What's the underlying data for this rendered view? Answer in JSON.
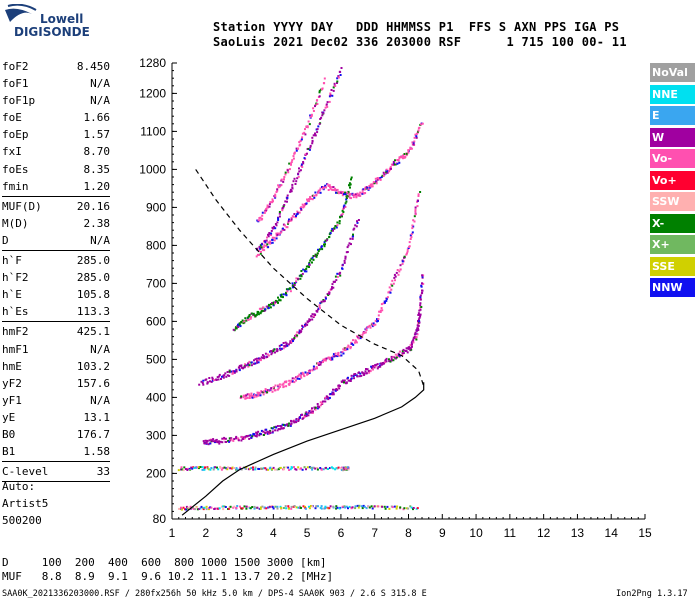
{
  "logo": {
    "line1": "Lowell",
    "line2": "DIGISONDE"
  },
  "header": {
    "line1": "Station YYYY DAY   DDD HHMMSS P1  FFS S AXN PPS IGA PS",
    "line2": "SaoLuis 2021 Dec02 336 203000 RSF      1 715 100 00- 11"
  },
  "params": [
    {
      "label": "foF2",
      "value": "8.450"
    },
    {
      "label": "foF1",
      "value": "N/A"
    },
    {
      "label": "foF1p",
      "value": "N/A"
    },
    {
      "label": "foE",
      "value": "1.66"
    },
    {
      "label": "foEp",
      "value": "1.57"
    },
    {
      "label": "fxI",
      "value": "8.70"
    },
    {
      "label": "foEs",
      "value": "8.35"
    },
    {
      "label": "fmin",
      "value": "1.20"
    },
    {
      "sep": true
    },
    {
      "label": "MUF(D)",
      "value": "20.16"
    },
    {
      "label": "M(D)",
      "value": "2.38"
    },
    {
      "label": "D",
      "value": "N/A"
    },
    {
      "sep": true
    },
    {
      "label": "h`F",
      "value": "285.0"
    },
    {
      "label": "h`F2",
      "value": "285.0"
    },
    {
      "label": "h`E",
      "value": "105.8"
    },
    {
      "label": "h`Es",
      "value": "113.3"
    },
    {
      "sep": true
    },
    {
      "label": "hmF2",
      "value": "425.1"
    },
    {
      "label": "hmF1",
      "value": "N/A"
    },
    {
      "label": "hmE",
      "value": "103.2"
    },
    {
      "label": "yF2",
      "value": "157.6"
    },
    {
      "label": "yF1",
      "value": "N/A"
    },
    {
      "label": "yE",
      "value": "13.1"
    },
    {
      "label": "B0",
      "value": "176.7"
    },
    {
      "label": "B1",
      "value": "1.58"
    },
    {
      "sep": true
    },
    {
      "label": "C-level",
      "value": "33"
    },
    {
      "sep": true
    }
  ],
  "auto": {
    "line1": "Auto:",
    "line2": "Artist5",
    "line3": "500200"
  },
  "legend": [
    {
      "label": "NoVal",
      "color": "#a0a0a0"
    },
    {
      "label": "NNE",
      "color": "#00e0f0"
    },
    {
      "label": "E",
      "color": "#3aa6f0"
    },
    {
      "label": "W",
      "color": "#a000a0"
    },
    {
      "label": "Vo-",
      "color": "#ff50b0"
    },
    {
      "label": "Vo+",
      "color": "#ff0030"
    },
    {
      "label": "SSW",
      "color": "#ffb0b0"
    },
    {
      "label": "X-",
      "color": "#008000"
    },
    {
      "label": "X+",
      "color": "#70b860"
    },
    {
      "label": "SSE",
      "color": "#d0d000"
    },
    {
      "label": "NNW",
      "color": "#1010f0"
    }
  ],
  "bottom_table": {
    "line1": "D     100  200  400  600  800 1000 1500 3000 [km]",
    "line2": "MUF   8.8  8.9  9.1  9.6 10.2 11.1 13.7 20.2 [MHz]"
  },
  "footer": {
    "text": "SAA0K_2021336203000.RSF / 280fx256h 50 kHz 5.0 km / DPS-4 SAA0K 903 / 2.6 S 315.8 E",
    "version": "Ion2Png 1.3.17"
  },
  "chart_data": {
    "type": "scatter",
    "xlim": [
      1,
      15
    ],
    "ylim": [
      80,
      1280
    ],
    "x_ticks": [
      1,
      2,
      3,
      4,
      5,
      6,
      7,
      8,
      9,
      10,
      11,
      12,
      13,
      14,
      15
    ],
    "y_ticks": [
      80,
      200,
      300,
      400,
      500,
      600,
      700,
      800,
      900,
      1000,
      1100,
      1200,
      1280
    ],
    "grid": false,
    "legend_position": "right",
    "series": [
      {
        "name": "h'F trace",
        "color": "#a000a0",
        "x": [
          1.9,
          2.3,
          3.0,
          3.5,
          4.0,
          4.5,
          5.0,
          5.5,
          6.0,
          6.5,
          7.0,
          7.5,
          8.0,
          8.2,
          8.3,
          8.4
        ],
        "y": [
          285,
          287,
          295,
          305,
          318,
          335,
          360,
          395,
          440,
          462,
          482,
          505,
          530,
          565,
          620,
          730
        ]
      },
      {
        "name": "2F trace",
        "color": "#ff50b0",
        "x": [
          3.0,
          3.5,
          4.0,
          4.5,
          5.0,
          5.5,
          6.0,
          6.5,
          7.0,
          7.5,
          8.0,
          8.3
        ],
        "y": [
          400,
          410,
          425,
          445,
          470,
          500,
          520,
          560,
          600,
          700,
          800,
          950
        ]
      },
      {
        "name": "3F trace",
        "color": "#a000a0",
        "x": [
          1.8,
          2.5,
          3.0,
          3.5,
          4.0,
          4.5,
          5.0,
          5.5,
          6.0,
          6.5
        ],
        "y": [
          440,
          460,
          480,
          500,
          525,
          550,
          600,
          660,
          740,
          880
        ]
      },
      {
        "name": "4F trace",
        "color": "#008000",
        "x": [
          2.8,
          3.2,
          3.6,
          4.0,
          4.5,
          5.0,
          5.5,
          6.0,
          6.3
        ],
        "y": [
          580,
          610,
          630,
          650,
          690,
          750,
          810,
          880,
          980
        ]
      },
      {
        "name": "5F trace",
        "color": "#ff50b0",
        "x": [
          3.5,
          4.0,
          4.5,
          5.0,
          5.5,
          6.0,
          6.4,
          6.8,
          7.2,
          7.6,
          8.0,
          8.4
        ],
        "y": [
          780,
          820,
          870,
          920,
          960,
          940,
          930,
          955,
          985,
          1020,
          1050,
          1130
        ]
      },
      {
        "name": "6F trace",
        "color": "#a000a0",
        "x": [
          3.5,
          4.0,
          4.5,
          5.0,
          5.5,
          6.0
        ],
        "y": [
          790,
          850,
          950,
          1050,
          1160,
          1270
        ]
      },
      {
        "name": "7F trace",
        "color": "#ff50b0",
        "x": [
          3.5,
          4.0,
          4.5,
          5.0,
          5.5
        ],
        "y": [
          860,
          930,
          1020,
          1120,
          1240
        ]
      },
      {
        "name": "Es trace",
        "color": "#ff0030",
        "x": [
          1.2,
          2,
          3,
          4,
          5,
          6,
          7,
          8.3
        ],
        "y": [
          110,
          112,
          113,
          113,
          113,
          114,
          113,
          112
        ]
      },
      {
        "name": "2Es trace",
        "color": "#008000",
        "x": [
          1.2,
          2,
          3,
          4,
          5,
          6,
          6.2
        ],
        "y": [
          215,
          216,
          216,
          215,
          216,
          215,
          215
        ]
      },
      {
        "name": "profile",
        "color": "#000000",
        "x": [
          1.3,
          2.0,
          2.5,
          3.0,
          4.0,
          5.0,
          6.0,
          7.0,
          7.8,
          8.2,
          8.45,
          8.45
        ],
        "y": [
          90,
          140,
          180,
          210,
          250,
          285,
          315,
          345,
          375,
          400,
          420,
          440
        ]
      },
      {
        "name": "MUF curve",
        "color": "#000000",
        "x": [
          1.7,
          2.3,
          3.0,
          4.0,
          5.0,
          6.0,
          7.0,
          7.8,
          8.3,
          8.45
        ],
        "y": [
          1000,
          920,
          840,
          740,
          660,
          590,
          540,
          510,
          470,
          430
        ]
      }
    ]
  }
}
